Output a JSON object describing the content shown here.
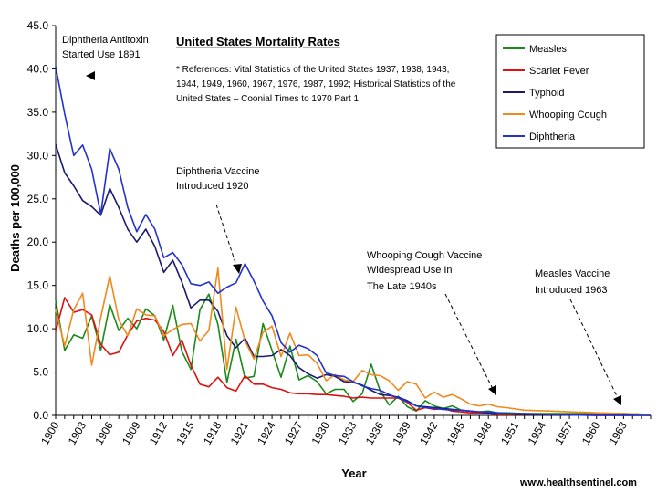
{
  "chart_data": {
    "type": "line",
    "title": "United States Mortality Rates",
    "references": [
      "* References: Vital Statistics of the United States 1937, 1938, 1943,",
      "1944, 1949, 1960, 1967, 1976, 1987, 1992; Historical Statistics of the",
      "United States – Coonial Times to 1970 Part 1"
    ],
    "xlabel": "Year",
    "ylabel": "Deaths per 100,000",
    "ylim": [
      0,
      45
    ],
    "xlim": [
      1900,
      1966
    ],
    "y_ticks": [
      "0.0",
      "5.0",
      "10.0",
      "15.0",
      "20.0",
      "25.0",
      "30.0",
      "35.0",
      "40.0",
      "45.0"
    ],
    "x_ticks": [
      "1900",
      "1903",
      "1906",
      "1909",
      "1912",
      "1915",
      "1918",
      "1921",
      "1924",
      "1927",
      "1930",
      "1933",
      "1936",
      "1939",
      "1942",
      "1945",
      "1948",
      "1951",
      "1954",
      "1957",
      "1960",
      "1963"
    ],
    "series": [
      {
        "name": "Measles",
        "color": "#1a8a1a",
        "x": [
          1900,
          1901,
          1902,
          1903,
          1904,
          1905,
          1906,
          1907,
          1908,
          1909,
          1910,
          1911,
          1912,
          1913,
          1914,
          1915,
          1916,
          1917,
          1918,
          1919,
          1920,
          1921,
          1922,
          1923,
          1924,
          1925,
          1926,
          1927,
          1928,
          1929,
          1930,
          1931,
          1932,
          1933,
          1934,
          1935,
          1936,
          1937,
          1938,
          1939,
          1940,
          1941,
          1942,
          1943,
          1944,
          1945,
          1946,
          1947,
          1948,
          1949,
          1950,
          1952,
          1955,
          1960,
          1963,
          1966
        ],
        "values": [
          13.3,
          7.5,
          9.3,
          8.9,
          11.5,
          7.5,
          12.8,
          9.8,
          11.2,
          10.0,
          12.3,
          11.5,
          8.7,
          12.7,
          7.4,
          5.3,
          12.2,
          14.0,
          10.5,
          3.8,
          8.8,
          4.3,
          4.5,
          10.6,
          7.5,
          4.4,
          8.0,
          4.1,
          4.6,
          3.9,
          2.5,
          3.0,
          3.0,
          1.6,
          2.5,
          5.9,
          2.8,
          1.2,
          2.2,
          1.0,
          0.5,
          1.7,
          1.1,
          0.8,
          1.1,
          0.6,
          0.5,
          0.4,
          0.5,
          0.3,
          0.3,
          0.2,
          0.2,
          0.2,
          0.2,
          0.1
        ]
      },
      {
        "name": "Scarlet Fever",
        "color": "#dd1111",
        "x": [
          1900,
          1901,
          1902,
          1903,
          1904,
          1905,
          1906,
          1907,
          1908,
          1909,
          1910,
          1911,
          1912,
          1913,
          1914,
          1915,
          1916,
          1917,
          1918,
          1919,
          1920,
          1921,
          1922,
          1923,
          1924,
          1925,
          1926,
          1927,
          1928,
          1929,
          1930,
          1931,
          1932,
          1933,
          1934,
          1935,
          1936,
          1937,
          1938,
          1939,
          1940,
          1941,
          1942,
          1943,
          1944,
          1945,
          1946,
          1947,
          1948,
          1949,
          1950,
          1952,
          1955,
          1960,
          1963,
          1966
        ],
        "values": [
          9.7,
          13.6,
          11.9,
          12.2,
          11.6,
          8.2,
          7.0,
          7.3,
          9.3,
          10.9,
          11.2,
          11.0,
          9.7,
          6.9,
          8.7,
          5.8,
          3.6,
          3.3,
          4.4,
          3.2,
          2.8,
          4.6,
          3.6,
          3.6,
          3.2,
          3.0,
          2.6,
          2.5,
          2.5,
          2.4,
          2.4,
          2.3,
          2.2,
          2.0,
          2.1,
          2.0,
          2.0,
          2.0,
          2.0,
          1.5,
          0.6,
          0.9,
          0.7,
          0.8,
          0.5,
          0.4,
          0.3,
          0.3,
          0.2,
          0.1,
          0.1,
          0.1,
          0.1,
          0.1,
          0.1,
          0.1
        ]
      },
      {
        "name": "Typhoid",
        "color": "#1a1a6e",
        "x": [
          1900,
          1901,
          1902,
          1903,
          1904,
          1905,
          1906,
          1907,
          1908,
          1909,
          1910,
          1911,
          1912,
          1913,
          1914,
          1915,
          1916,
          1917,
          1918,
          1919,
          1920,
          1921,
          1922,
          1923,
          1924,
          1925,
          1926,
          1927,
          1928,
          1929,
          1930,
          1931,
          1932,
          1933,
          1934,
          1935,
          1936,
          1937,
          1938,
          1939,
          1940,
          1941,
          1942,
          1943,
          1944,
          1945,
          1946,
          1947,
          1948,
          1949,
          1950,
          1952,
          1955,
          1960,
          1963,
          1966
        ],
        "values": [
          31.3,
          28.0,
          26.5,
          24.8,
          24.1,
          23.1,
          26.2,
          24.0,
          21.5,
          20.0,
          21.5,
          19.5,
          16.5,
          17.9,
          15.4,
          12.4,
          13.3,
          13.3,
          12.0,
          9.2,
          7.8,
          8.9,
          6.8,
          6.8,
          6.9,
          7.6,
          6.9,
          5.5,
          4.8,
          4.3,
          4.7,
          4.5,
          3.9,
          3.8,
          3.5,
          2.9,
          2.4,
          2.3,
          2.1,
          1.7,
          1.1,
          1.0,
          0.9,
          0.8,
          0.7,
          0.6,
          0.5,
          0.4,
          0.3,
          0.2,
          0.2,
          0.1,
          0.1,
          0.0,
          0.0,
          0.0
        ]
      },
      {
        "name": "Whooping Cough",
        "color": "#ee8a1e",
        "x": [
          1900,
          1901,
          1902,
          1903,
          1904,
          1905,
          1906,
          1907,
          1908,
          1909,
          1910,
          1911,
          1912,
          1913,
          1914,
          1915,
          1916,
          1917,
          1918,
          1919,
          1920,
          1921,
          1922,
          1923,
          1924,
          1925,
          1926,
          1927,
          1928,
          1929,
          1930,
          1931,
          1932,
          1933,
          1934,
          1935,
          1936,
          1937,
          1938,
          1939,
          1940,
          1941,
          1942,
          1943,
          1944,
          1945,
          1946,
          1947,
          1948,
          1949,
          1950,
          1952,
          1955,
          1960,
          1963,
          1966
        ],
        "values": [
          12.2,
          8.0,
          12.2,
          14.1,
          5.8,
          11.3,
          16.1,
          11.0,
          9.2,
          12.3,
          11.6,
          11.5,
          9.2,
          9.9,
          10.5,
          10.6,
          8.6,
          9.8,
          17.0,
          5.3,
          12.5,
          8.6,
          6.5,
          9.6,
          10.3,
          6.8,
          9.5,
          6.9,
          7.0,
          6.0,
          4.0,
          4.7,
          4.1,
          3.9,
          5.2,
          4.7,
          4.6,
          4.0,
          2.9,
          3.9,
          3.6,
          2.0,
          2.7,
          2.1,
          2.4,
          1.9,
          1.3,
          1.1,
          1.3,
          1.0,
          0.9,
          0.6,
          0.5,
          0.3,
          0.2,
          0.1
        ]
      },
      {
        "name": "Diphtheria",
        "color": "#2233cc",
        "x": [
          1900,
          1901,
          1902,
          1903,
          1904,
          1905,
          1906,
          1907,
          1908,
          1909,
          1910,
          1911,
          1912,
          1913,
          1914,
          1915,
          1916,
          1917,
          1918,
          1919,
          1920,
          1921,
          1922,
          1923,
          1924,
          1925,
          1926,
          1927,
          1928,
          1929,
          1930,
          1931,
          1932,
          1933,
          1934,
          1935,
          1936,
          1937,
          1938,
          1939,
          1940,
          1941,
          1942,
          1943,
          1944,
          1945,
          1946,
          1947,
          1948,
          1949,
          1950,
          1952,
          1955,
          1960,
          1963,
          1966
        ],
        "values": [
          40.3,
          34.8,
          30.0,
          31.2,
          28.4,
          23.2,
          30.8,
          28.4,
          24.0,
          21.2,
          23.2,
          21.5,
          18.2,
          18.8,
          17.4,
          15.2,
          15.0,
          15.4,
          14.1,
          14.8,
          15.3,
          17.5,
          15.5,
          13.2,
          11.5,
          8.4,
          7.3,
          8.1,
          7.7,
          6.9,
          4.9,
          4.6,
          4.5,
          3.9,
          3.4,
          3.1,
          2.9,
          2.4,
          2.0,
          1.6,
          1.1,
          0.9,
          0.8,
          0.7,
          0.6,
          0.6,
          0.5,
          0.4,
          0.4,
          0.3,
          0.2,
          0.2,
          0.1,
          0.0,
          0.0,
          0.0
        ]
      }
    ],
    "annotations": [
      {
        "lines": [
          "Diphtheria Antitoxin",
          "Started Use 1891"
        ]
      },
      {
        "lines": [
          "Diphtheria Vaccine",
          "Introduced 1920"
        ]
      },
      {
        "lines": [
          "Whooping Cough Vaccine",
          "Widespread Use In",
          "The Late 1940s"
        ]
      },
      {
        "lines": [
          "Measles Vaccine",
          "Introduced 1963"
        ]
      }
    ],
    "source": "www.healthsentinel.com"
  }
}
